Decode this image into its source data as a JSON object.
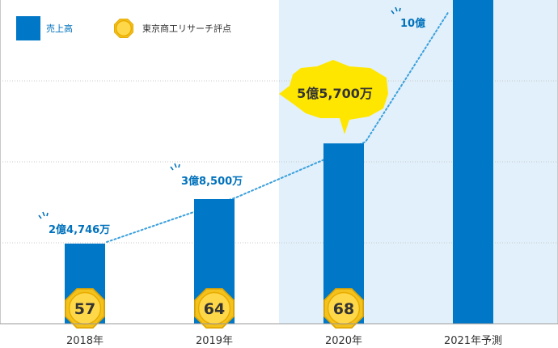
{
  "chart_data": {
    "type": "bar",
    "categories": [
      "2018年",
      "2019年",
      "2020年",
      "2021年予測"
    ],
    "series": [
      {
        "name": "売上高",
        "values": [
          24746,
          38500,
          55700,
          100000
        ],
        "value_labels": [
          "2億4,746万",
          "3億8,500万",
          "5億5,700万",
          "10億"
        ]
      },
      {
        "name": "東京商工リサーチ評点",
        "values": [
          57,
          64,
          68,
          null
        ]
      }
    ],
    "highlight_category": "2020年",
    "ylim": [
      0,
      100000
    ],
    "grid": true,
    "legend": "top-left",
    "colors": {
      "bar": "#0077c7",
      "trend": "#3aa0dc",
      "label": "#0071bc",
      "highlight_bg": "#e2f0fb",
      "callout": "#ffe600",
      "medal": "#f4c21d",
      "grid": "#c8c8c8"
    },
    "icon": "gold-medal-icon"
  }
}
